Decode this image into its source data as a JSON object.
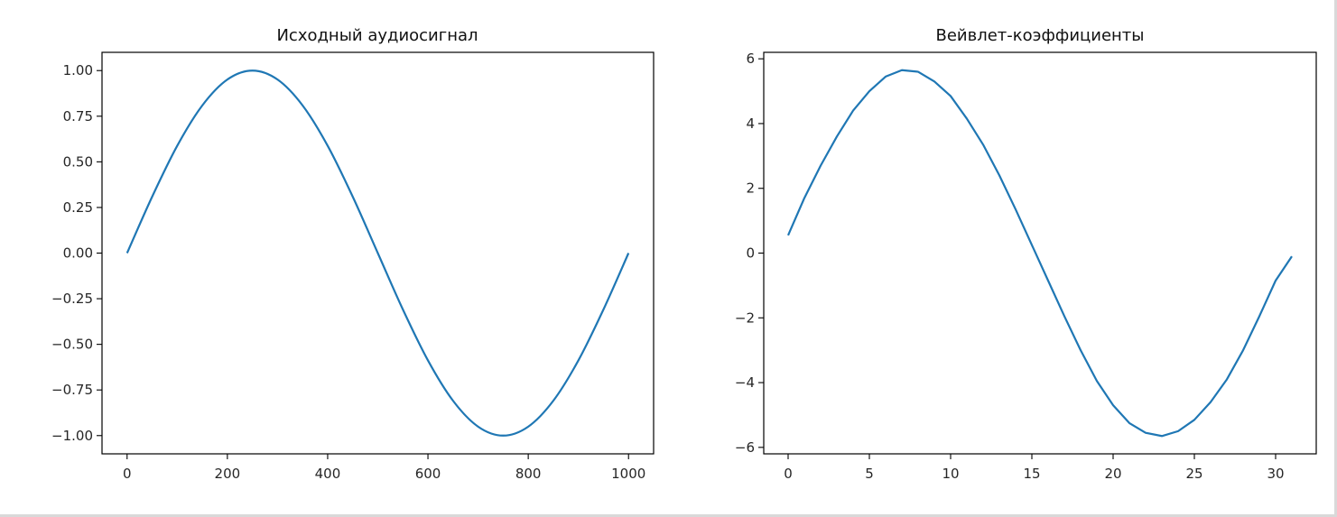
{
  "chart_data": [
    {
      "type": "line",
      "title": "Исходный аудиосигнал",
      "xlabel": "",
      "ylabel": "",
      "xlim": [
        -50,
        1050
      ],
      "ylim": [
        -1.1,
        1.1
      ],
      "x_ticks": [
        0,
        200,
        400,
        600,
        800,
        1000
      ],
      "x_tick_labels": [
        "0",
        "200",
        "400",
        "600",
        "800",
        "1000"
      ],
      "y_ticks": [
        1.0,
        0.75,
        0.5,
        0.25,
        0.0,
        -0.25,
        -0.5,
        -0.75,
        -1.0
      ],
      "y_tick_labels": [
        "1.00",
        "0.75",
        "0.50",
        "0.25",
        "0.00",
        "−0.25",
        "−0.50",
        "−0.75",
        "−1.00"
      ],
      "grid": false,
      "series": [
        {
          "color": "#1f77b4",
          "x": [
            0,
            50,
            100,
            150,
            200,
            250,
            300,
            350,
            400,
            450,
            500,
            550,
            600,
            650,
            700,
            750,
            800,
            850,
            900,
            950,
            1000
          ],
          "y": [
            0,
            0.309,
            0.588,
            0.809,
            0.951,
            1.0,
            0.951,
            0.809,
            0.588,
            0.309,
            0,
            -0.309,
            -0.588,
            -0.809,
            -0.951,
            -1.0,
            -0.951,
            -0.809,
            -0.588,
            -0.309,
            0
          ]
        }
      ]
    },
    {
      "type": "line",
      "title": "Вейвлет-коэффициенты",
      "xlabel": "",
      "ylabel": "",
      "xlim": [
        -1.5,
        32.5
      ],
      "ylim": [
        -6.2,
        6.2
      ],
      "x_ticks": [
        0,
        5,
        10,
        15,
        20,
        25,
        30
      ],
      "x_tick_labels": [
        "0",
        "5",
        "10",
        "15",
        "20",
        "25",
        "30"
      ],
      "y_ticks": [
        6,
        4,
        2,
        0,
        -2,
        -4,
        -6
      ],
      "y_tick_labels": [
        "6",
        "4",
        "2",
        "0",
        "−2",
        "−4",
        "−6"
      ],
      "grid": false,
      "series": [
        {
          "color": "#1f77b4",
          "x": [
            0,
            1,
            2,
            3,
            4,
            5,
            6,
            7,
            8,
            9,
            10,
            11,
            12,
            13,
            14,
            15,
            16,
            17,
            18,
            19,
            20,
            21,
            22,
            23,
            24,
            25,
            26,
            27,
            28,
            29,
            30,
            31
          ],
          "y": [
            0.55,
            1.7,
            2.7,
            3.6,
            4.4,
            5.0,
            5.45,
            5.65,
            5.6,
            5.3,
            4.85,
            4.15,
            3.35,
            2.4,
            1.35,
            0.25,
            -0.85,
            -1.95,
            -3.0,
            -3.95,
            -4.7,
            -5.25,
            -5.55,
            -5.65,
            -5.5,
            -5.15,
            -4.6,
            -3.9,
            -3.0,
            -1.95,
            -0.85,
            -0.1
          ]
        }
      ]
    }
  ]
}
